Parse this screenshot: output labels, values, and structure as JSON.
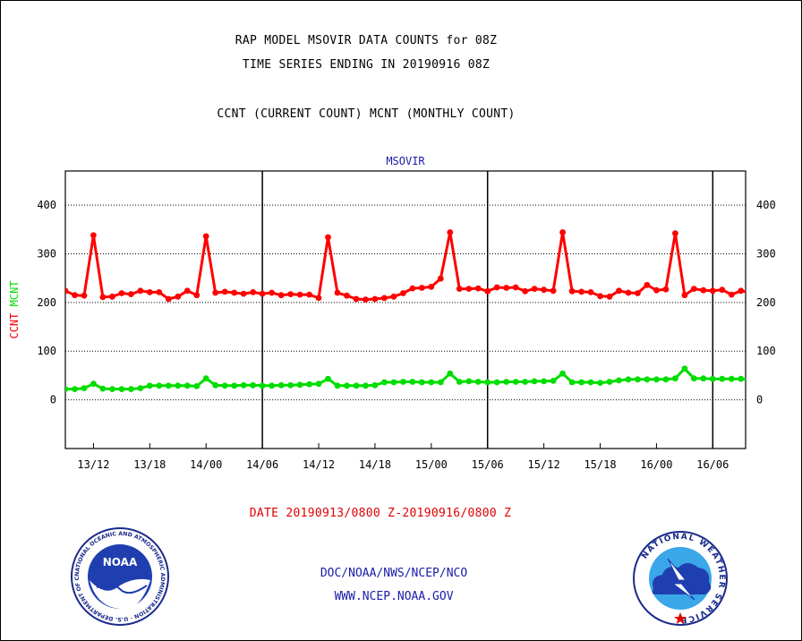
{
  "titles": {
    "line1": "RAP MODEL MSOVIR DATA COUNTS for 08Z",
    "line2": "TIME SERIES ENDING IN 20190916 08Z",
    "line3": "CCNT (CURRENT COUNT) MCNT (MONTHLY COUNT)"
  },
  "date_range": "DATE 20190913/0800 Z-20190916/0800 Z",
  "footer": {
    "line1": "DOC/NOAA/NWS/NCEP/NCO",
    "line2": "WWW.NCEP.NOAA.GOV"
  },
  "logos": {
    "noaa_text": "NOAA",
    "noaa_ring": "NATIONAL OCEANIC AND ATMOSPHERIC ADMINISTRATION · U.S. DEPARTMENT OF COMMERCE ·",
    "nws_ring": "NATIONAL WEATHER SERVICE"
  },
  "chart_data": {
    "type": "line",
    "title": "MSOVIR",
    "ylabel_parts": [
      {
        "text": "CCNT",
        "color": "#ff0000"
      },
      {
        "text": "MCNT",
        "color": "#00dd00"
      }
    ],
    "ylim": [
      -100,
      470
    ],
    "yticks": [
      0,
      100,
      200,
      300,
      400
    ],
    "x_range_hours": [
      -68.8,
      -65.2
    ],
    "xlim": [
      "2019-09-13 09:00",
      "2019-09-16 09:30"
    ],
    "xticks": [
      {
        "x": "2019-09-13 12:00",
        "label": "13/12"
      },
      {
        "x": "2019-09-13 18:00",
        "label": "13/18"
      },
      {
        "x": "2019-09-14 00:00",
        "label": "14/00"
      },
      {
        "x": "2019-09-14 06:00",
        "label": "14/06"
      },
      {
        "x": "2019-09-14 12:00",
        "label": "14/12"
      },
      {
        "x": "2019-09-14 18:00",
        "label": "14/18"
      },
      {
        "x": "2019-09-15 00:00",
        "label": "15/00"
      },
      {
        "x": "2019-09-15 06:00",
        "label": "15/06"
      },
      {
        "x": "2019-09-15 12:00",
        "label": "15/12"
      },
      {
        "x": "2019-09-15 18:00",
        "label": "15/18"
      },
      {
        "x": "2019-09-16 00:00",
        "label": "16/00"
      },
      {
        "x": "2019-09-16 06:00",
        "label": "16/06"
      }
    ],
    "day_boundaries": [
      "2019-09-14 06:00",
      "2019-09-15 06:00",
      "2019-09-16 06:00"
    ],
    "grid": "horizontal dotted",
    "series": [
      {
        "name": "CCNT",
        "color": "#ff0000",
        "start": "2019-09-13 08:00",
        "step_hours": 1,
        "values": [
          212,
          224,
          215,
          214,
          338,
          211,
          212,
          219,
          217,
          224,
          221,
          221,
          207,
          212,
          224,
          215,
          336,
          220,
          222,
          220,
          218,
          221,
          218,
          220,
          215,
          217,
          216,
          216,
          209,
          334,
          220,
          214,
          207,
          206,
          207,
          209,
          212,
          219,
          229,
          230,
          232,
          249,
          344,
          228,
          228,
          229,
          223,
          231,
          230,
          231,
          223,
          228,
          226,
          224,
          344,
          223,
          222,
          221,
          213,
          212,
          224,
          220,
          219,
          236,
          225,
          227,
          342,
          215,
          228,
          225,
          224,
          226,
          216,
          224,
          220
        ]
      },
      {
        "name": "MCNT",
        "color": "#00dd00",
        "start": "2019-09-13 08:00",
        "step_hours": 1,
        "values": [
          22,
          22,
          22,
          24,
          33,
          23,
          22,
          22,
          22,
          24,
          29,
          29,
          29,
          29,
          29,
          28,
          44,
          30,
          29,
          29,
          30,
          30,
          29,
          29,
          30,
          30,
          31,
          32,
          33,
          43,
          29,
          29,
          29,
          29,
          30,
          36,
          36,
          37,
          37,
          36,
          36,
          36,
          54,
          37,
          38,
          37,
          36,
          36,
          37,
          37,
          37,
          38,
          38,
          39,
          54,
          36,
          36,
          36,
          35,
          37,
          40,
          42,
          42,
          42,
          42,
          42,
          44,
          64,
          44,
          44,
          43,
          43,
          43,
          43,
          42
        ]
      }
    ]
  }
}
